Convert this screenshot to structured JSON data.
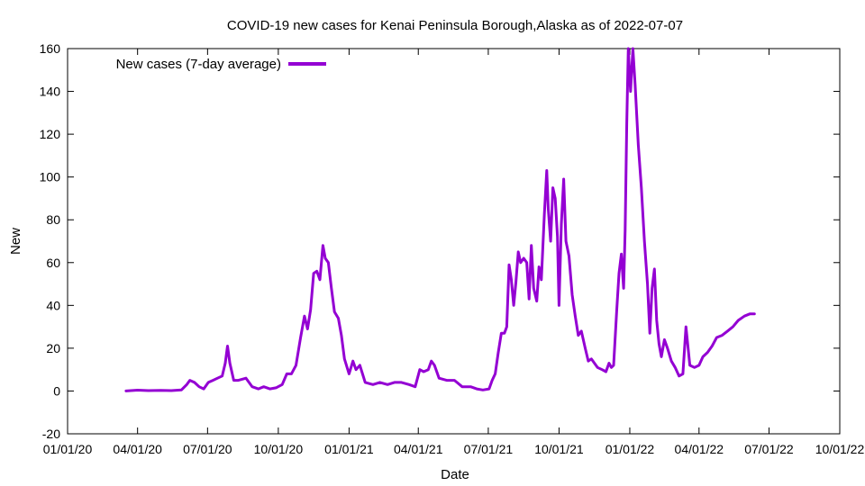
{
  "chart_data": {
    "type": "line",
    "title": "COVID-19 new cases for Kenai Peninsula Borough,Alaska as of 2022-07-07",
    "xlabel": "Date",
    "ylabel": "New",
    "xlim": [
      "2020-01-01",
      "2022-10-01"
    ],
    "ylim": [
      -20,
      160
    ],
    "x_ticks": [
      {
        "date": "2020-01-01",
        "label": "01/01/20"
      },
      {
        "date": "2020-04-01",
        "label": "04/01/20"
      },
      {
        "date": "2020-07-01",
        "label": "07/01/20"
      },
      {
        "date": "2020-10-01",
        "label": "10/01/20"
      },
      {
        "date": "2021-01-01",
        "label": "01/01/21"
      },
      {
        "date": "2021-04-01",
        "label": "04/01/21"
      },
      {
        "date": "2021-07-01",
        "label": "07/01/21"
      },
      {
        "date": "2021-10-01",
        "label": "10/01/21"
      },
      {
        "date": "2022-01-01",
        "label": "01/01/22"
      },
      {
        "date": "2022-04-01",
        "label": "04/01/22"
      },
      {
        "date": "2022-07-01",
        "label": "07/01/22"
      },
      {
        "date": "2022-10-01",
        "label": "10/01/22"
      }
    ],
    "y_ticks": [
      -20,
      0,
      20,
      40,
      60,
      80,
      100,
      120,
      140,
      160
    ],
    "legend_position": "top-left",
    "series": [
      {
        "name": "New cases (7-day average)",
        "color": "#9400d3",
        "points": [
          [
            "2020-03-17",
            0
          ],
          [
            "2020-04-01",
            0.4
          ],
          [
            "2020-04-15",
            0.2
          ],
          [
            "2020-05-01",
            0.3
          ],
          [
            "2020-05-15",
            0.2
          ],
          [
            "2020-05-28",
            0.5
          ],
          [
            "2020-06-04",
            3
          ],
          [
            "2020-06-08",
            5
          ],
          [
            "2020-06-14",
            4
          ],
          [
            "2020-06-20",
            2
          ],
          [
            "2020-06-26",
            1
          ],
          [
            "2020-07-02",
            4
          ],
          [
            "2020-07-08",
            5
          ],
          [
            "2020-07-14",
            6
          ],
          [
            "2020-07-20",
            7
          ],
          [
            "2020-07-24",
            13
          ],
          [
            "2020-07-27",
            21
          ],
          [
            "2020-07-30",
            13
          ],
          [
            "2020-08-04",
            5
          ],
          [
            "2020-08-10",
            5
          ],
          [
            "2020-08-20",
            6
          ],
          [
            "2020-08-28",
            2
          ],
          [
            "2020-09-05",
            1
          ],
          [
            "2020-09-12",
            2
          ],
          [
            "2020-09-20",
            1
          ],
          [
            "2020-09-28",
            1.5
          ],
          [
            "2020-10-06",
            3
          ],
          [
            "2020-10-12",
            8
          ],
          [
            "2020-10-18",
            8
          ],
          [
            "2020-10-24",
            12
          ],
          [
            "2020-10-30",
            25
          ],
          [
            "2020-11-04",
            35
          ],
          [
            "2020-11-08",
            29
          ],
          [
            "2020-11-12",
            38
          ],
          [
            "2020-11-16",
            55
          ],
          [
            "2020-11-20",
            56
          ],
          [
            "2020-11-24",
            52
          ],
          [
            "2020-11-28",
            68
          ],
          [
            "2020-12-01",
            62
          ],
          [
            "2020-12-05",
            60
          ],
          [
            "2020-12-09",
            48
          ],
          [
            "2020-12-13",
            37
          ],
          [
            "2020-12-18",
            34
          ],
          [
            "2020-12-22",
            26
          ],
          [
            "2020-12-26",
            15
          ],
          [
            "2021-01-01",
            8
          ],
          [
            "2021-01-06",
            14
          ],
          [
            "2021-01-10",
            10
          ],
          [
            "2021-01-15",
            12
          ],
          [
            "2021-01-22",
            4
          ],
          [
            "2021-02-01",
            3
          ],
          [
            "2021-02-10",
            4
          ],
          [
            "2021-02-20",
            3
          ],
          [
            "2021-03-01",
            4
          ],
          [
            "2021-03-10",
            4
          ],
          [
            "2021-03-20",
            3
          ],
          [
            "2021-03-28",
            2
          ],
          [
            "2021-04-03",
            10
          ],
          [
            "2021-04-08",
            9
          ],
          [
            "2021-04-14",
            10
          ],
          [
            "2021-04-18",
            14
          ],
          [
            "2021-04-22",
            12
          ],
          [
            "2021-04-28",
            6
          ],
          [
            "2021-05-08",
            5
          ],
          [
            "2021-05-18",
            5
          ],
          [
            "2021-05-28",
            2
          ],
          [
            "2021-06-08",
            2
          ],
          [
            "2021-06-16",
            1
          ],
          [
            "2021-06-24",
            0.5
          ],
          [
            "2021-07-02",
            1
          ],
          [
            "2021-07-06",
            5
          ],
          [
            "2021-07-10",
            8
          ],
          [
            "2021-07-14",
            18
          ],
          [
            "2021-07-18",
            27
          ],
          [
            "2021-07-22",
            27
          ],
          [
            "2021-07-25",
            30
          ],
          [
            "2021-07-28",
            59
          ],
          [
            "2021-07-31",
            52
          ],
          [
            "2021-08-03",
            40
          ],
          [
            "2021-08-06",
            51
          ],
          [
            "2021-08-09",
            65
          ],
          [
            "2021-08-12",
            60
          ],
          [
            "2021-08-16",
            62
          ],
          [
            "2021-08-20",
            60
          ],
          [
            "2021-08-23",
            43
          ],
          [
            "2021-08-26",
            68
          ],
          [
            "2021-08-29",
            48
          ],
          [
            "2021-09-02",
            42
          ],
          [
            "2021-09-05",
            58
          ],
          [
            "2021-09-08",
            52
          ],
          [
            "2021-09-12",
            83
          ],
          [
            "2021-09-15",
            103
          ],
          [
            "2021-09-17",
            85
          ],
          [
            "2021-09-20",
            70
          ],
          [
            "2021-09-23",
            95
          ],
          [
            "2021-09-26",
            90
          ],
          [
            "2021-09-29",
            72
          ],
          [
            "2021-10-01",
            40
          ],
          [
            "2021-10-04",
            78
          ],
          [
            "2021-10-07",
            99
          ],
          [
            "2021-10-10",
            70
          ],
          [
            "2021-10-14",
            63
          ],
          [
            "2021-10-18",
            45
          ],
          [
            "2021-10-22",
            35
          ],
          [
            "2021-10-26",
            26
          ],
          [
            "2021-10-30",
            28
          ],
          [
            "2021-11-04",
            20
          ],
          [
            "2021-11-08",
            14
          ],
          [
            "2021-11-12",
            15
          ],
          [
            "2021-11-16",
            13
          ],
          [
            "2021-11-20",
            11
          ],
          [
            "2021-11-26",
            10
          ],
          [
            "2021-12-01",
            9
          ],
          [
            "2021-12-05",
            13
          ],
          [
            "2021-12-08",
            11
          ],
          [
            "2021-12-11",
            12
          ],
          [
            "2021-12-15",
            38
          ],
          [
            "2021-12-18",
            55
          ],
          [
            "2021-12-21",
            64
          ],
          [
            "2021-12-24",
            48
          ],
          [
            "2021-12-26",
            75
          ],
          [
            "2021-12-28",
            125
          ],
          [
            "2021-12-30",
            160
          ],
          [
            "2022-01-02",
            140
          ],
          [
            "2022-01-05",
            160
          ],
          [
            "2022-01-08",
            143
          ],
          [
            "2022-01-12",
            115
          ],
          [
            "2022-01-16",
            95
          ],
          [
            "2022-01-20",
            70
          ],
          [
            "2022-01-24",
            50
          ],
          [
            "2022-01-27",
            27
          ],
          [
            "2022-01-30",
            48
          ],
          [
            "2022-02-02",
            57
          ],
          [
            "2022-02-05",
            33
          ],
          [
            "2022-02-08",
            22
          ],
          [
            "2022-02-11",
            16
          ],
          [
            "2022-02-15",
            24
          ],
          [
            "2022-02-19",
            20
          ],
          [
            "2022-02-24",
            14
          ],
          [
            "2022-03-01",
            11
          ],
          [
            "2022-03-06",
            7
          ],
          [
            "2022-03-11",
            8
          ],
          [
            "2022-03-15",
            30
          ],
          [
            "2022-03-20",
            12
          ],
          [
            "2022-03-26",
            11
          ],
          [
            "2022-04-01",
            12
          ],
          [
            "2022-04-06",
            16
          ],
          [
            "2022-04-12",
            18
          ],
          [
            "2022-04-18",
            21
          ],
          [
            "2022-04-24",
            25
          ],
          [
            "2022-05-01",
            26
          ],
          [
            "2022-05-08",
            28
          ],
          [
            "2022-05-15",
            30
          ],
          [
            "2022-05-22",
            33
          ],
          [
            "2022-05-30",
            35
          ],
          [
            "2022-06-06",
            36
          ],
          [
            "2022-06-12",
            36
          ]
        ]
      }
    ]
  }
}
